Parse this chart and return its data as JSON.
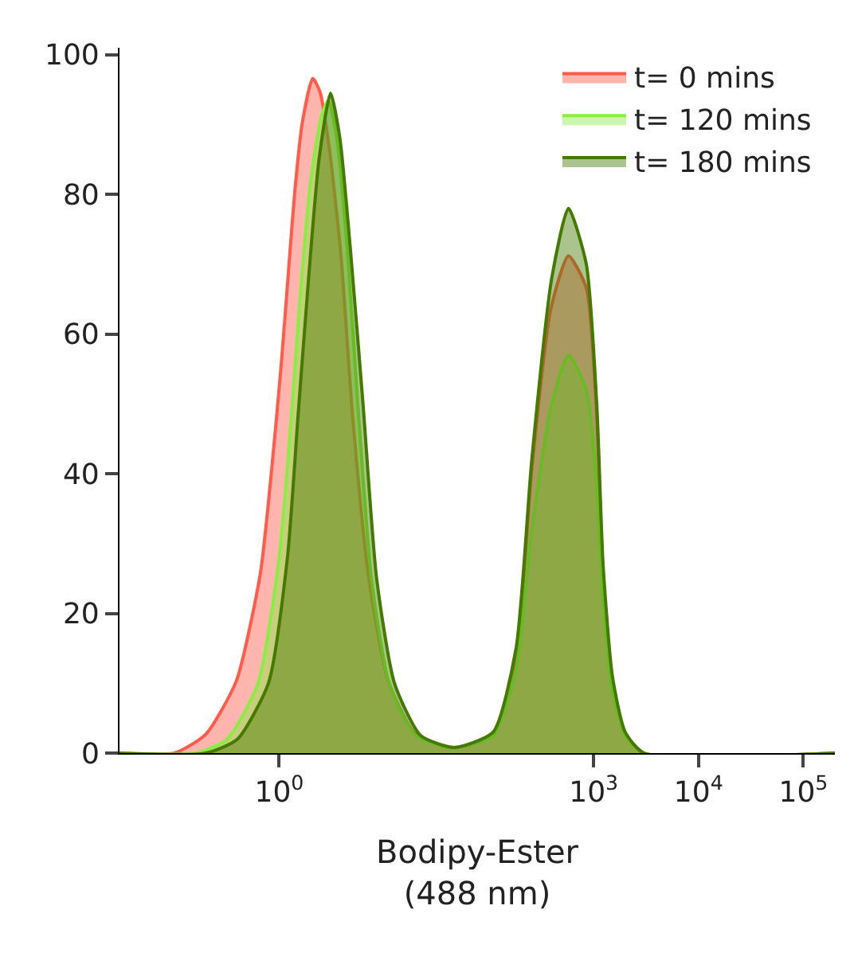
{
  "chart_data": {
    "type": "area",
    "xlabel": "Bodipy-Ester\n(488 nm)",
    "log": "x",
    "xlim": [
      0.03,
      200000
    ],
    "xticks": [
      {
        "value": 1,
        "label": "10$^{0}$"
      },
      {
        "value": 1000,
        "label": "10$^{3}$"
      },
      {
        "value": 10000,
        "label": "10$^{4}$"
      },
      {
        "value": 100000,
        "label": "10$^{5}$"
      }
    ],
    "ylim": [
      0,
      101
    ],
    "yticks": [
      0,
      20,
      40,
      60,
      80,
      100
    ],
    "grid": false,
    "legend": "top right",
    "series": [
      {
        "name": "t= 0 mins",
        "color": "#ff5a4a",
        "x": [
          0.03,
          0.1,
          0.2,
          0.39,
          0.66,
          0.85,
          1.05,
          1.26,
          1.41,
          1.66,
          2.09,
          2.45,
          3.02,
          3.89,
          5.01,
          7.08,
          11,
          20,
          46.8,
          110,
          182,
          257,
          389,
          575,
          851,
          1070,
          1230,
          1510,
          2000,
          3020,
          200000
        ],
        "values": [
          0,
          0,
          2.7,
          10.3,
          25.6,
          40.7,
          55.9,
          71.2,
          80.4,
          90.2,
          96.6,
          94.7,
          86.4,
          71.2,
          48.4,
          25.6,
          10.3,
          2.7,
          0.8,
          2.7,
          14,
          40.7,
          63.5,
          71.2,
          66.6,
          48.4,
          25.6,
          10.3,
          2.7,
          0,
          0
        ]
      },
      {
        "name": "t= 120 mins",
        "color": "#88ee44",
        "x": [
          0.03,
          0.16,
          0.32,
          0.63,
          1,
          1.26,
          1.58,
          2.0,
          2.51,
          2.95,
          3.55,
          4.47,
          5.62,
          7.59,
          11.2,
          20,
          44.7,
          110,
          182,
          257,
          398,
          575,
          851,
          1070,
          1230,
          1510,
          2000,
          3020,
          200000
        ],
        "values": [
          0,
          0,
          2,
          10,
          28,
          45,
          65,
          82,
          91,
          93.5,
          88,
          72,
          50,
          25,
          10,
          2.5,
          0.8,
          2.5,
          12,
          32,
          50,
          57,
          52,
          38,
          22,
          9,
          2.5,
          0,
          0
        ]
      },
      {
        "name": "t= 180 mins",
        "color": "#447a00",
        "x": [
          0.03,
          0.2,
          0.4,
          0.79,
          1.2,
          1.51,
          1.91,
          2.4,
          3.09,
          3.8,
          4.79,
          6.31,
          8.51,
          12.6,
          22.4,
          46.8,
          110,
          182,
          257,
          398,
          575,
          851,
          1070,
          1230,
          1510,
          2000,
          3020,
          200000
        ],
        "values": [
          0,
          0,
          2,
          10,
          28,
          48,
          68,
          85,
          94.5,
          88,
          72,
          50,
          25,
          10,
          2.5,
          0.8,
          3,
          15,
          42,
          68,
          78,
          70,
          50,
          27,
          11,
          3,
          0,
          0
        ]
      }
    ]
  }
}
